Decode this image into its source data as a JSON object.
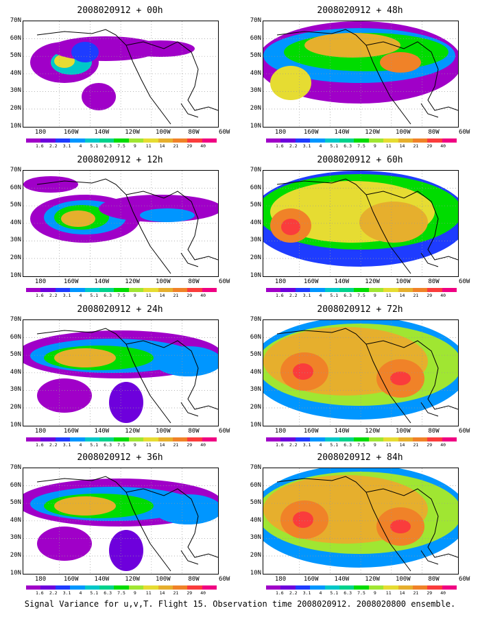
{
  "panels": [
    {
      "title": "2008020912 + 00h",
      "base": 0
    },
    {
      "title": "2008020912 + 48h",
      "base": 3
    },
    {
      "title": "2008020912 + 12h",
      "base": 1
    },
    {
      "title": "2008020912 + 60h",
      "base": 4
    },
    {
      "title": "2008020912 + 24h",
      "base": 2
    },
    {
      "title": "2008020912 + 72h",
      "base": 5
    },
    {
      "title": "2008020912 + 36h",
      "base": 2
    },
    {
      "title": "2008020912 + 84h",
      "base": 5
    }
  ],
  "lat_labels": [
    "70N",
    "60N",
    "50N",
    "40N",
    "30N",
    "20N",
    "10N"
  ],
  "lon_labels": [
    "180",
    "160W",
    "140W",
    "120W",
    "100W",
    "80W",
    "60W"
  ],
  "colorbar": {
    "labels": [
      "1.6",
      "2.2",
      "3.1",
      "4",
      "5.1",
      "6.3",
      "7.5",
      "9",
      "11",
      "14",
      "21",
      "29",
      "40"
    ],
    "colors": [
      "#a000c8",
      "#6e00dc",
      "#1e3cff",
      "#0096ff",
      "#00c8c8",
      "#00d28c",
      "#00dc00",
      "#a0e632",
      "#e6dc32",
      "#e6af2d",
      "#f08228",
      "#fa3c3c",
      "#f00082"
    ]
  },
  "footer": "Signal Variance for u,v,T. Flight 15. Observation time 2008020912. 2008020800 ensemble."
}
